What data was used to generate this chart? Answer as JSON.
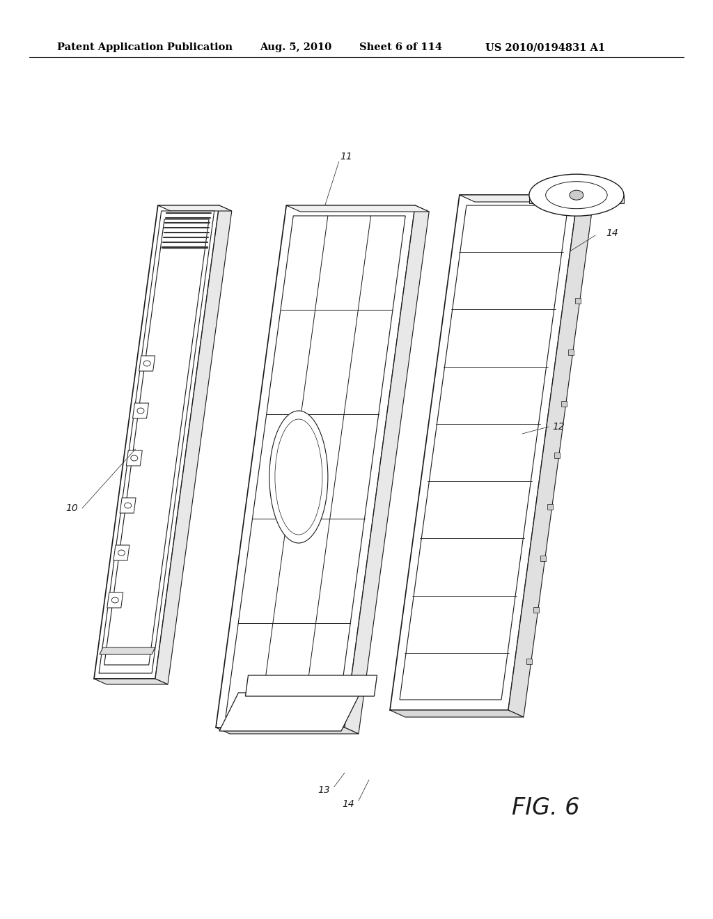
{
  "title_left": "Patent Application Publication",
  "title_date": "Aug. 5, 2010",
  "title_sheet": "Sheet 6 of 114",
  "title_patent": "US 2010/0194831 A1",
  "fig_label": "FIG. 6",
  "background_color": "#ffffff",
  "line_color": "#1a1a1a",
  "header_fontsize": 10.5,
  "fig_label_fontsize": 24,
  "ref_num_fontsize": 10
}
